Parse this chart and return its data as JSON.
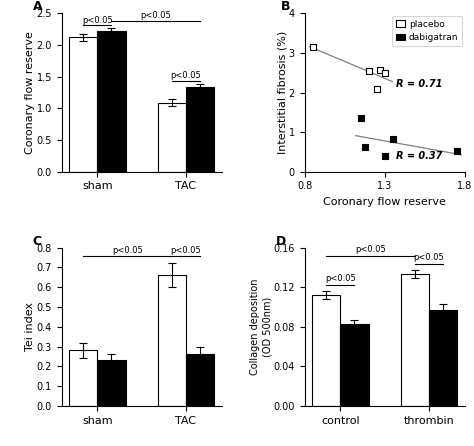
{
  "A": {
    "title": "A",
    "ylabel": "Coronary flow reserve",
    "groups": [
      "sham",
      "TAC"
    ],
    "placebo_means": [
      2.12,
      1.09
    ],
    "placebo_errors": [
      0.05,
      0.05
    ],
    "dabigatran_means": [
      2.22,
      1.34
    ],
    "dabigatran_errors": [
      0.05,
      0.05
    ],
    "ylim": [
      0,
      2.5
    ],
    "yticks": [
      0,
      0.5,
      1.0,
      1.5,
      2.0,
      2.5
    ]
  },
  "B": {
    "title": "B",
    "xlabel": "Coronary flow reserve",
    "ylabel": "Interstitial fibrosis (%)",
    "placebo_x": [
      0.85,
      1.2,
      1.25,
      1.27,
      1.3
    ],
    "placebo_y": [
      3.15,
      2.55,
      2.1,
      2.57,
      2.5
    ],
    "dabigatran_x": [
      1.15,
      1.18,
      1.3,
      1.35,
      1.75
    ],
    "dabigatran_y": [
      1.35,
      0.62,
      0.4,
      0.82,
      0.53
    ],
    "placebo_r": "R = 0.71",
    "dabigatran_r": "R = 0.37",
    "xlim": [
      0.8,
      1.8
    ],
    "xticks": [
      0.8,
      1.3,
      1.8
    ],
    "ylim": [
      0,
      4
    ],
    "yticks": [
      0,
      1,
      2,
      3,
      4
    ]
  },
  "C": {
    "title": "C",
    "ylabel": "Tei index",
    "groups": [
      "sham",
      "TAC"
    ],
    "placebo_means": [
      0.28,
      0.66
    ],
    "placebo_errors": [
      0.04,
      0.06
    ],
    "dabigatran_means": [
      0.23,
      0.26
    ],
    "dabigatran_errors": [
      0.03,
      0.04
    ],
    "ylim": [
      0,
      0.8
    ],
    "yticks": [
      0,
      0.1,
      0.2,
      0.3,
      0.4,
      0.5,
      0.6,
      0.7,
      0.8
    ]
  },
  "D": {
    "title": "D",
    "ylabel": "Collagen deposition\n(OD 500nm)",
    "groups": [
      "control",
      "thrombin"
    ],
    "placebo_means": [
      0.112,
      0.133
    ],
    "placebo_errors": [
      0.004,
      0.004
    ],
    "dabigatran_means": [
      0.083,
      0.097
    ],
    "dabigatran_errors": [
      0.004,
      0.006
    ],
    "ylim": [
      0,
      0.16
    ],
    "yticks": [
      0,
      0.04,
      0.08,
      0.12,
      0.16
    ]
  },
  "bar_width": 0.32,
  "placebo_color": "white",
  "dabigatran_color": "black",
  "edgecolor": "black",
  "fontsize": 8,
  "label_fontsize": 8,
  "tick_fontsize": 7
}
